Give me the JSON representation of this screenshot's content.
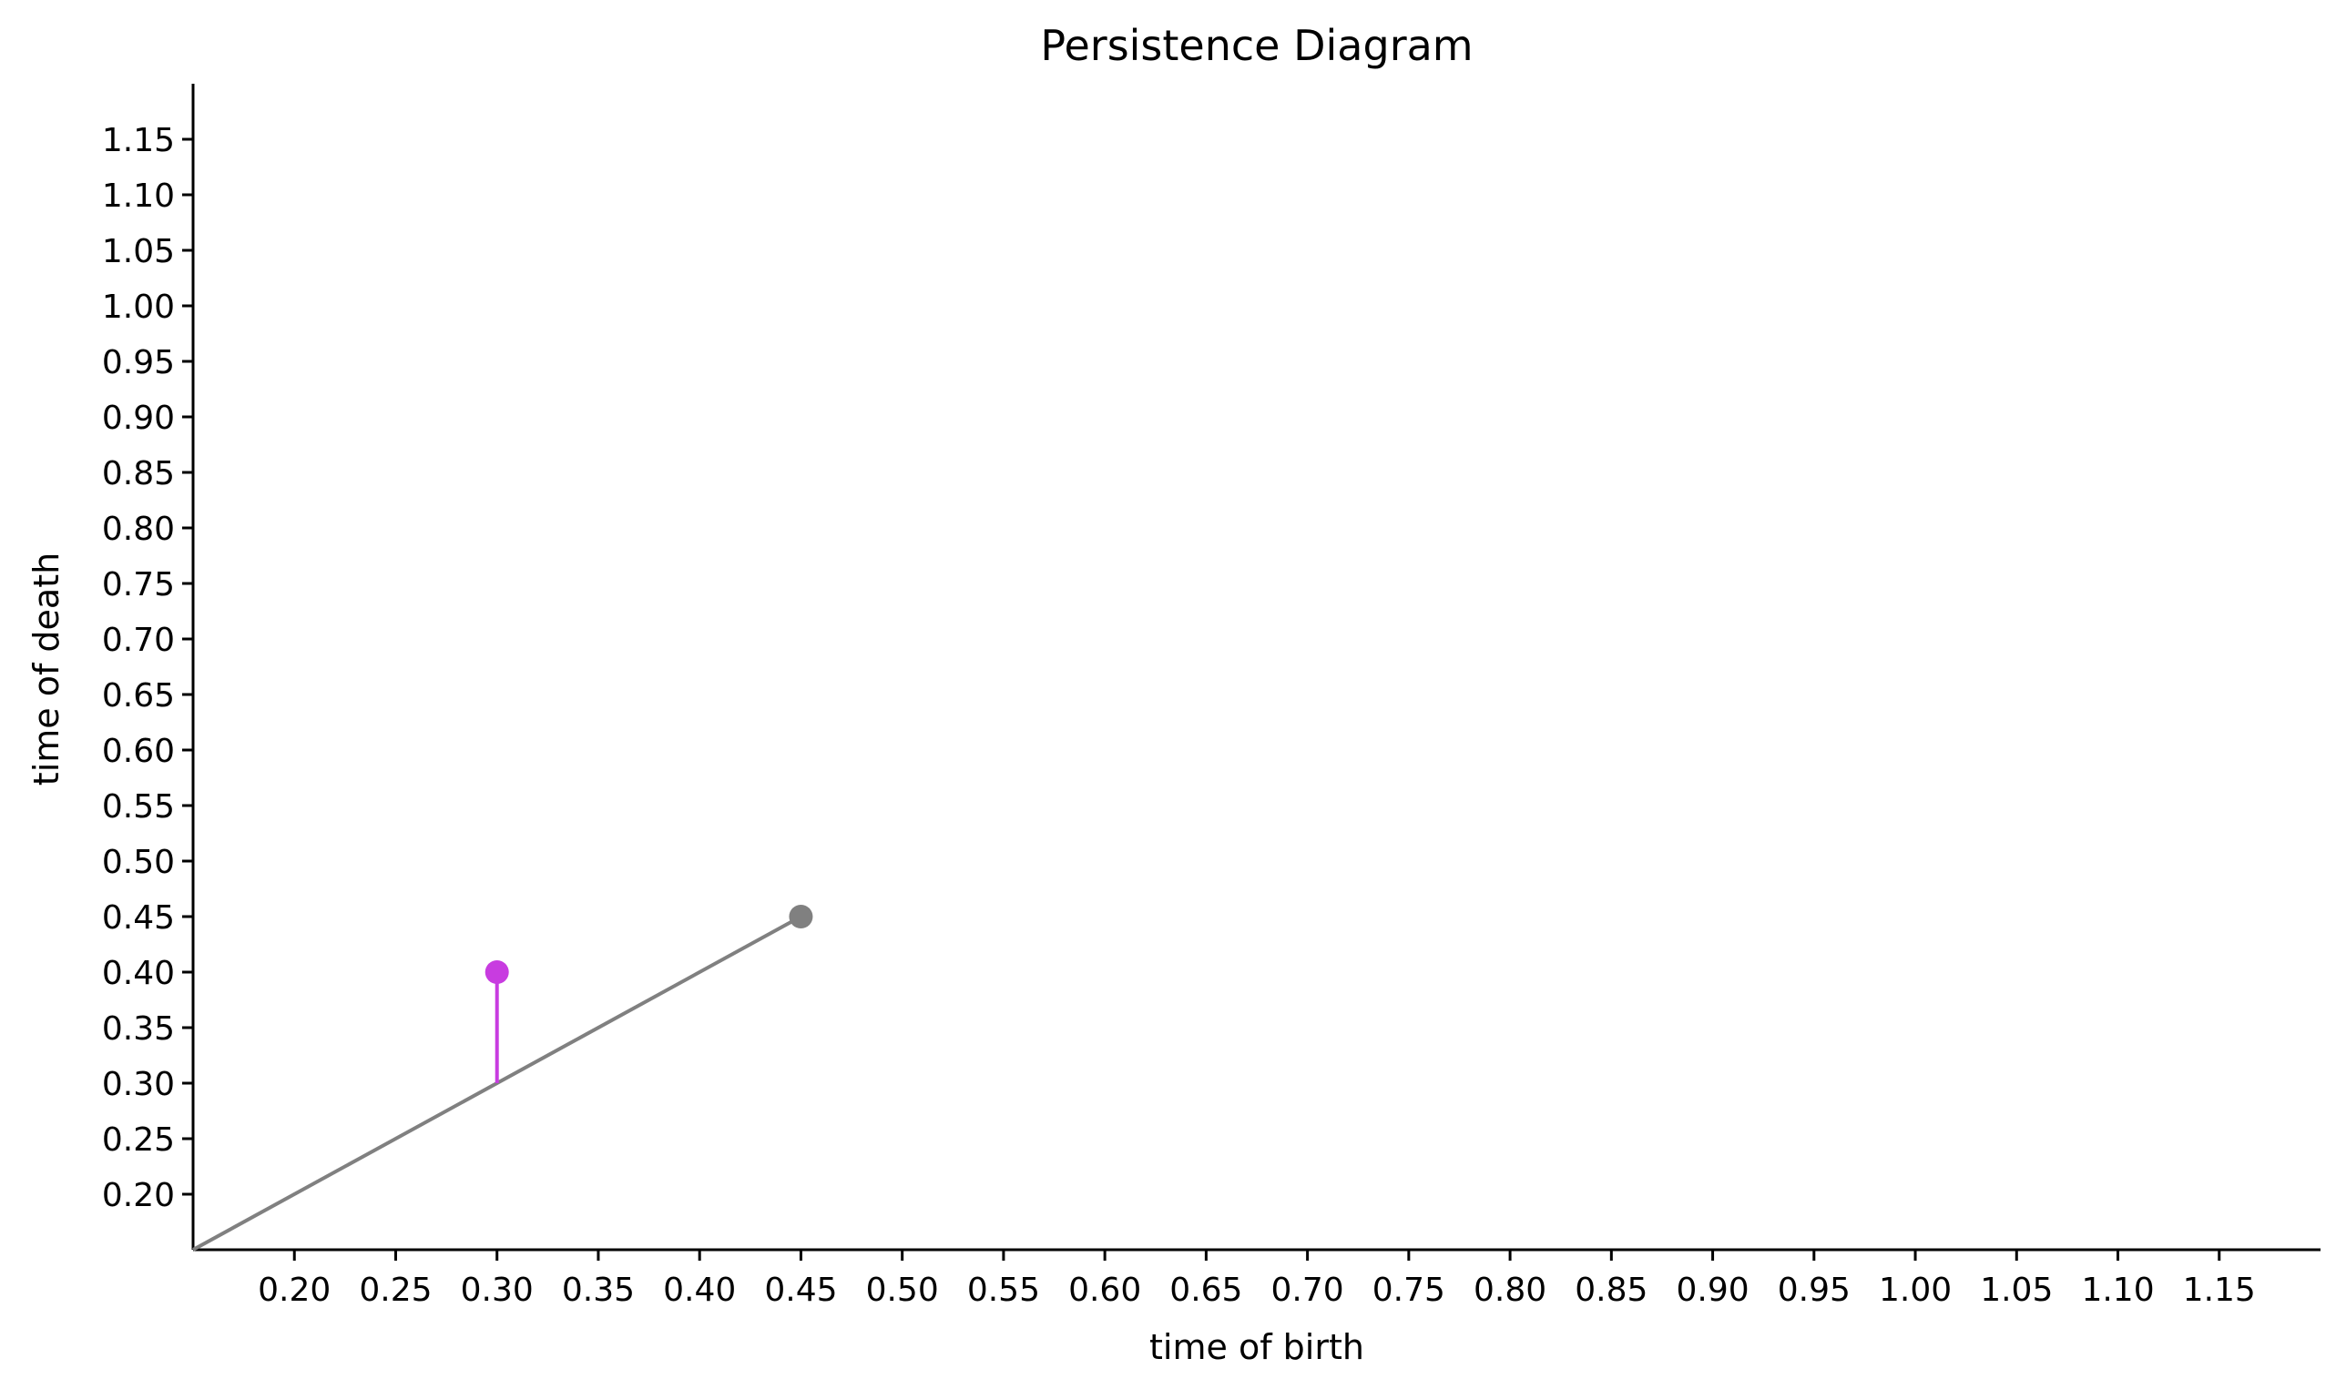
{
  "chart_data": {
    "type": "scatter",
    "title": "Persistence Diagram",
    "xlabel": "time of birth",
    "ylabel": "time of death",
    "xlim": [
      0.15,
      1.2
    ],
    "ylim": [
      0.15,
      1.2
    ],
    "x_ticks": [
      0.2,
      0.25,
      0.3,
      0.35,
      0.4,
      0.45,
      0.5,
      0.55,
      0.6,
      0.65,
      0.7,
      0.75,
      0.8,
      0.85,
      0.9,
      0.95,
      1.0,
      1.05,
      1.1,
      1.15
    ],
    "y_ticks": [
      0.2,
      0.25,
      0.3,
      0.35,
      0.4,
      0.45,
      0.5,
      0.55,
      0.6,
      0.65,
      0.7,
      0.75,
      0.8,
      0.85,
      0.9,
      0.95,
      1.0,
      1.05,
      1.1,
      1.15
    ],
    "x_tick_labels": [
      "0.20",
      "0.25",
      "0.30",
      "0.35",
      "0.40",
      "0.45",
      "0.50",
      "0.55",
      "0.60",
      "0.65",
      "0.70",
      "0.75",
      "0.80",
      "0.85",
      "0.90",
      "0.95",
      "1.00",
      "1.05",
      "1.10",
      "1.15"
    ],
    "y_tick_labels": [
      "0.20",
      "0.25",
      "0.30",
      "0.35",
      "0.40",
      "0.45",
      "0.50",
      "0.55",
      "0.60",
      "0.65",
      "0.70",
      "0.75",
      "0.80",
      "0.85",
      "0.90",
      "0.95",
      "1.00",
      "1.05",
      "1.10",
      "1.15"
    ],
    "diagonal": {
      "from": [
        0.15,
        0.15
      ],
      "to": [
        0.45,
        0.45
      ],
      "color": "#808080"
    },
    "points": [
      {
        "x": 0.3,
        "y": 0.4,
        "color": "#c83ce0",
        "stem_to_diagonal": true
      },
      {
        "x": 0.45,
        "y": 0.45,
        "color": "#808080",
        "stem_to_diagonal": false
      }
    ],
    "grid": false,
    "spines": [
      "left",
      "bottom"
    ]
  }
}
